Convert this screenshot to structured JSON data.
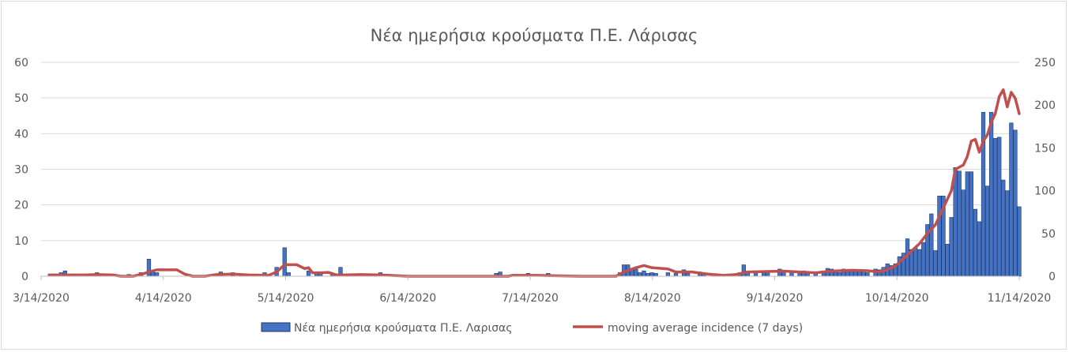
{
  "chart_data": {
    "type": "bar",
    "title": "Νέα ημερήσια κρούσματα Π.Ε. Λάρισας",
    "x_tick_labels": [
      "3/14/2020",
      "4/14/2020",
      "5/14/2020",
      "6/14/2020",
      "7/14/2020",
      "8/14/2020",
      "9/14/2020",
      "10/14/2020",
      "11/14/2020"
    ],
    "x_range": [
      "2020-03-14",
      "2020-11-14"
    ],
    "y_left": {
      "ylim": [
        0,
        60
      ],
      "ticks": [
        "0",
        "10",
        "20",
        "30",
        "40",
        "50",
        "60"
      ]
    },
    "y_right": {
      "ylim": [
        0,
        250
      ],
      "ticks": [
        "0",
        "50",
        "100",
        "150",
        "200",
        "250"
      ]
    },
    "grid": true,
    "legend_position": "bottom",
    "series": [
      {
        "name": "Νέα ημερήσια κρούσματα Π.Ε. Λαρισας",
        "type": "bar",
        "axis": "left",
        "color": "#4472c4",
        "border_color": "#1f3864",
        "points": [
          [
            "2020-03-19",
            1
          ],
          [
            "2020-03-20",
            1.5
          ],
          [
            "2020-03-28",
            1
          ],
          [
            "2020-04-05",
            0.5
          ],
          [
            "2020-04-08",
            1
          ],
          [
            "2020-04-10",
            4.8
          ],
          [
            "2020-04-11",
            1.5
          ],
          [
            "2020-04-12",
            1
          ],
          [
            "2020-04-28",
            1.2
          ],
          [
            "2020-05-01",
            1
          ],
          [
            "2020-05-06",
            0.5
          ],
          [
            "2020-05-09",
            1
          ],
          [
            "2020-05-12",
            2.5
          ],
          [
            "2020-05-14",
            8
          ],
          [
            "2020-05-15",
            1
          ],
          [
            "2020-05-20",
            1.5
          ],
          [
            "2020-05-22",
            1
          ],
          [
            "2020-05-23",
            1
          ],
          [
            "2020-05-26",
            0.5
          ],
          [
            "2020-05-28",
            2.5
          ],
          [
            "2020-06-05",
            0.5
          ],
          [
            "2020-06-07",
            1
          ],
          [
            "2020-06-09",
            0.5
          ],
          [
            "2020-07-06",
            0.8
          ],
          [
            "2020-07-07",
            1.2
          ],
          [
            "2020-07-14",
            0.8
          ],
          [
            "2020-07-19",
            0.8
          ],
          [
            "2020-08-06",
            1
          ],
          [
            "2020-08-07",
            3.2
          ],
          [
            "2020-08-08",
            3.2
          ],
          [
            "2020-08-09",
            2
          ],
          [
            "2020-08-10",
            2
          ],
          [
            "2020-08-11",
            1
          ],
          [
            "2020-08-12",
            1.5
          ],
          [
            "2020-08-13",
            0.8
          ],
          [
            "2020-08-14",
            1
          ],
          [
            "2020-08-15",
            0.8
          ],
          [
            "2020-08-18",
            1
          ],
          [
            "2020-08-20",
            0.8
          ],
          [
            "2020-08-22",
            1.8
          ],
          [
            "2020-08-23",
            0.8
          ],
          [
            "2020-08-26",
            1.2
          ],
          [
            "2020-08-27",
            0.8
          ],
          [
            "2020-09-05",
            1
          ],
          [
            "2020-09-06",
            3.2
          ],
          [
            "2020-09-07",
            1
          ],
          [
            "2020-09-09",
            1
          ],
          [
            "2020-09-11",
            1
          ],
          [
            "2020-09-12",
            1.5
          ],
          [
            "2020-09-15",
            2
          ],
          [
            "2020-09-16",
            1.5
          ],
          [
            "2020-09-18",
            1.5
          ],
          [
            "2020-09-20",
            1
          ],
          [
            "2020-09-21",
            1.5
          ],
          [
            "2020-09-22",
            1
          ],
          [
            "2020-09-24",
            1
          ],
          [
            "2020-09-26",
            1
          ],
          [
            "2020-09-27",
            2.2
          ],
          [
            "2020-09-28",
            2
          ],
          [
            "2020-09-29",
            1.5
          ],
          [
            "2020-09-30",
            1
          ],
          [
            "2020-10-01",
            2
          ],
          [
            "2020-10-02",
            1.5
          ],
          [
            "2020-10-03",
            1.2
          ],
          [
            "2020-10-04",
            1.5
          ],
          [
            "2020-10-05",
            1.8
          ],
          [
            "2020-10-06",
            1.5
          ],
          [
            "2020-10-07",
            1
          ],
          [
            "2020-10-09",
            2
          ],
          [
            "2020-10-10",
            1.8
          ],
          [
            "2020-10-11",
            2.5
          ],
          [
            "2020-10-12",
            3.5
          ],
          [
            "2020-10-13",
            3
          ],
          [
            "2020-10-14",
            3.5
          ],
          [
            "2020-10-15",
            5.5
          ],
          [
            "2020-10-16",
            6.5
          ],
          [
            "2020-10-17",
            10.5
          ],
          [
            "2020-10-18",
            7.5
          ],
          [
            "2020-10-19",
            8
          ],
          [
            "2020-10-20",
            7.5
          ],
          [
            "2020-10-21",
            9.5
          ],
          [
            "2020-10-22",
            14.5
          ],
          [
            "2020-10-23",
            17.5
          ],
          [
            "2020-10-24",
            7.2
          ],
          [
            "2020-10-25",
            22.5
          ],
          [
            "2020-10-26",
            22.5
          ],
          [
            "2020-10-27",
            9
          ],
          [
            "2020-10-28",
            16.5
          ],
          [
            "2020-10-29",
            30.5
          ],
          [
            "2020-10-30",
            29.5
          ],
          [
            "2020-10-31",
            24.2
          ],
          [
            "2020-11-01",
            29.3
          ],
          [
            "2020-11-02",
            29.3
          ],
          [
            "2020-11-03",
            18.8
          ],
          [
            "2020-11-04",
            15.3
          ],
          [
            "2020-11-05",
            46
          ],
          [
            "2020-11-06",
            25.3
          ],
          [
            "2020-11-07",
            46
          ],
          [
            "2020-11-08",
            38.7
          ],
          [
            "2020-11-09",
            39
          ],
          [
            "2020-11-10",
            27
          ],
          [
            "2020-11-11",
            24
          ],
          [
            "2020-11-12",
            43
          ],
          [
            "2020-11-13",
            41
          ],
          [
            "2020-11-14",
            19.5
          ]
        ]
      },
      {
        "name": "moving average incidence (7 days)",
        "type": "line",
        "axis": "right",
        "color": "#c0504d",
        "points": [
          [
            "2020-03-16",
            1.5
          ],
          [
            "2020-03-25",
            1.5
          ],
          [
            "2020-03-28",
            2
          ],
          [
            "2020-04-01",
            1.5
          ],
          [
            "2020-04-03",
            0
          ],
          [
            "2020-04-06",
            0
          ],
          [
            "2020-04-08",
            2
          ],
          [
            "2020-04-10",
            5
          ],
          [
            "2020-04-12",
            7.5
          ],
          [
            "2020-04-17",
            7.5
          ],
          [
            "2020-04-19",
            2.5
          ],
          [
            "2020-04-21",
            0
          ],
          [
            "2020-04-24",
            0
          ],
          [
            "2020-04-27",
            2
          ],
          [
            "2020-05-01",
            2.5
          ],
          [
            "2020-05-05",
            1.5
          ],
          [
            "2020-05-10",
            1
          ],
          [
            "2020-05-12",
            5
          ],
          [
            "2020-05-14",
            13.5
          ],
          [
            "2020-05-17",
            13.5
          ],
          [
            "2020-05-19",
            9
          ],
          [
            "2020-05-20",
            10
          ],
          [
            "2020-05-21",
            4
          ],
          [
            "2020-05-23",
            4
          ],
          [
            "2020-05-25",
            4.5
          ],
          [
            "2020-05-27",
            1.5
          ],
          [
            "2020-05-29",
            1.5
          ],
          [
            "2020-06-02",
            2
          ],
          [
            "2020-06-07",
            1.5
          ],
          [
            "2020-06-14",
            0
          ],
          [
            "2020-07-09",
            0
          ],
          [
            "2020-07-10",
            1
          ],
          [
            "2020-07-16",
            1
          ],
          [
            "2020-07-27",
            0
          ],
          [
            "2020-08-05",
            0
          ],
          [
            "2020-08-07",
            5
          ],
          [
            "2020-08-10",
            10
          ],
          [
            "2020-08-12",
            12.5
          ],
          [
            "2020-08-14",
            10
          ],
          [
            "2020-08-18",
            8.5
          ],
          [
            "2020-08-20",
            5
          ],
          [
            "2020-08-24",
            5
          ],
          [
            "2020-08-28",
            2.5
          ],
          [
            "2020-09-01",
            1
          ],
          [
            "2020-09-04",
            2
          ],
          [
            "2020-09-07",
            5
          ],
          [
            "2020-09-12",
            5.5
          ],
          [
            "2020-09-16",
            6
          ],
          [
            "2020-09-20",
            5
          ],
          [
            "2020-09-24",
            4
          ],
          [
            "2020-09-28",
            6
          ],
          [
            "2020-10-03",
            7
          ],
          [
            "2020-10-07",
            6.5
          ],
          [
            "2020-10-10",
            5
          ],
          [
            "2020-10-12",
            8
          ],
          [
            "2020-10-14",
            12
          ],
          [
            "2020-10-17",
            25
          ],
          [
            "2020-10-20",
            38
          ],
          [
            "2020-10-22",
            50
          ],
          [
            "2020-10-24",
            60
          ],
          [
            "2020-10-26",
            80
          ],
          [
            "2020-10-28",
            100
          ],
          [
            "2020-10-29",
            125
          ],
          [
            "2020-10-31",
            130
          ],
          [
            "2020-11-01",
            140
          ],
          [
            "2020-11-02",
            158
          ],
          [
            "2020-11-03",
            160
          ],
          [
            "2020-11-04",
            145
          ],
          [
            "2020-11-05",
            158
          ],
          [
            "2020-11-06",
            165
          ],
          [
            "2020-11-07",
            180
          ],
          [
            "2020-11-08",
            190
          ],
          [
            "2020-11-09",
            210
          ],
          [
            "2020-11-10",
            218
          ],
          [
            "2020-11-11",
            198
          ],
          [
            "2020-11-12",
            215
          ],
          [
            "2020-11-13",
            208
          ],
          [
            "2020-11-14",
            190
          ]
        ]
      }
    ]
  }
}
